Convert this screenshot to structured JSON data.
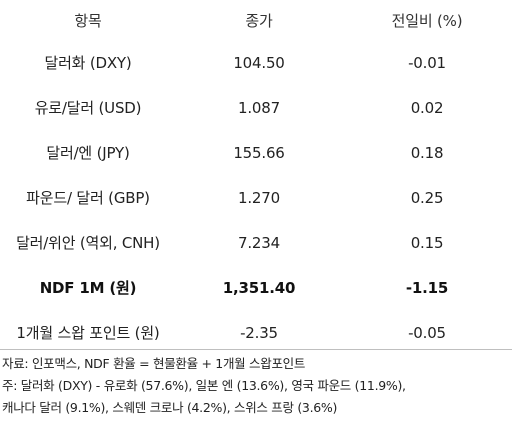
{
  "table": {
    "headers": [
      "항목",
      "종가",
      "전일비 (%)"
    ],
    "rows": [
      {
        "item": "달러화 (DXY)",
        "close": "104.50",
        "change": "-0.01",
        "bold": false
      },
      {
        "item": "유로/달러 (USD)",
        "close": "1.087",
        "change": "0.02",
        "bold": false
      },
      {
        "item": "달러/엔 (JPY)",
        "close": "155.66",
        "change": "0.18",
        "bold": false
      },
      {
        "item": "파운드/ 달러 (GBP)",
        "close": "1.270",
        "change": "0.25",
        "bold": false
      },
      {
        "item": "달러/위안 (역외, CNH)",
        "close": "7.234",
        "change": "0.15",
        "bold": false
      },
      {
        "item": "NDF 1M (원)",
        "close": "1,351.40",
        "change": "-1.15",
        "bold": true
      },
      {
        "item": "1개월 스왑 포인트 (원)",
        "close": "-2.35",
        "change": "-0.05",
        "bold": false
      }
    ]
  },
  "notes": {
    "source": "자료: 인포맥스, NDF 환율 = 현물환율 + 1개월 스왑포인트",
    "note_line1": "주: 달러화 (DXY) - 유로화 (57.6%), 일본 엔 (13.6%), 영국 파운드 (11.9%),",
    "note_line2": "캐나다 달러 (9.1%), 스웨덴 크로나 (4.2%), 스위스 프랑 (3.6%)"
  }
}
